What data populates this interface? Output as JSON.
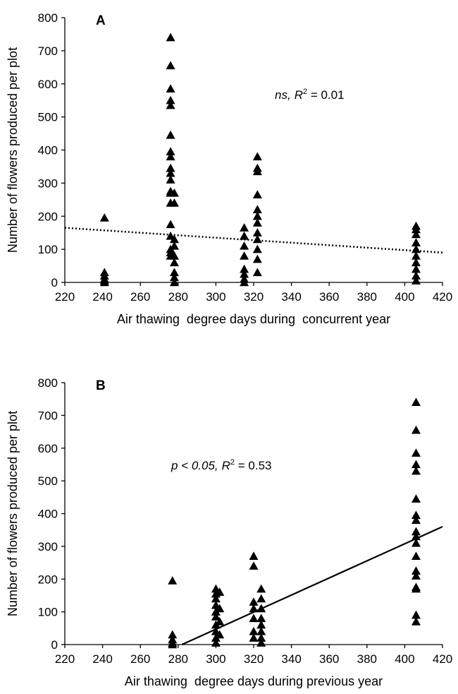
{
  "chart_data": [
    {
      "type": "scatter",
      "panel_label": "A",
      "xlabel": "Air thawing  degree days during  concurrent year",
      "ylabel": "Number of flowers produced per plot",
      "annotation": {
        "italic": "ns,",
        "symbol": "R",
        "superscript": "2",
        "text": " = 0.01"
      },
      "xlim": [
        220,
        420
      ],
      "xticks": [
        220,
        240,
        260,
        280,
        300,
        320,
        340,
        360,
        380,
        400,
        420
      ],
      "ylim": [
        0,
        800
      ],
      "yticks": [
        0,
        100,
        200,
        300,
        400,
        500,
        600,
        700,
        800
      ],
      "color": "#000000",
      "series": [
        {
          "x": [
            241,
            241,
            241,
            241,
            241,
            241,
            276,
            276,
            276,
            276,
            276,
            276,
            276,
            276,
            276,
            276,
            276,
            276,
            276,
            276,
            276,
            276,
            276,
            276,
            276,
            278,
            278,
            278,
            278,
            278,
            278,
            278,
            278,
            278,
            315,
            315,
            315,
            315,
            315,
            315,
            315,
            315,
            322,
            322,
            322,
            322,
            322,
            322,
            322,
            322,
            322,
            322,
            322,
            322,
            406,
            406,
            406,
            406,
            406,
            406,
            406,
            406,
            406,
            406
          ],
          "values": [
            195,
            30,
            20,
            10,
            5,
            0,
            740,
            655,
            585,
            550,
            535,
            445,
            395,
            380,
            345,
            330,
            310,
            275,
            270,
            240,
            175,
            140,
            100,
            80,
            90,
            270,
            240,
            130,
            110,
            80,
            60,
            30,
            15,
            0,
            165,
            140,
            110,
            80,
            40,
            25,
            10,
            0,
            380,
            345,
            335,
            265,
            220,
            200,
            180,
            150,
            130,
            100,
            70,
            30,
            170,
            160,
            145,
            120,
            100,
            80,
            60,
            40,
            20,
            5
          ]
        }
      ],
      "trendline": {
        "x": [
          220,
          420
        ],
        "values": [
          165,
          90
        ],
        "style": "dotted"
      }
    },
    {
      "type": "scatter",
      "panel_label": "B",
      "xlabel": "Air thawing  degree days during previous year",
      "ylabel": "Number of flowers produced per plot",
      "annotation": {
        "italic": "p < 0.05,",
        "symbol": "R",
        "superscript": "2",
        "text": " = 0.53"
      },
      "xlim": [
        220,
        420
      ],
      "xticks": [
        220,
        240,
        260,
        280,
        300,
        320,
        340,
        360,
        380,
        400,
        420
      ],
      "ylim": [
        0,
        800
      ],
      "yticks": [
        0,
        100,
        200,
        300,
        400,
        500,
        600,
        700,
        800
      ],
      "color": "#000000",
      "series": [
        {
          "x": [
            277,
            277,
            277,
            277,
            277,
            300,
            300,
            300,
            300,
            300,
            300,
            300,
            300,
            300,
            300,
            302,
            302,
            302,
            302,
            320,
            320,
            320,
            320,
            320,
            320,
            320,
            324,
            324,
            324,
            324,
            324,
            324,
            324,
            324,
            406,
            406,
            406,
            406,
            406,
            406,
            406,
            406,
            406,
            406,
            406,
            406,
            406,
            406,
            406,
            406,
            406,
            406
          ],
          "values": [
            195,
            30,
            15,
            5,
            0,
            170,
            155,
            140,
            120,
            100,
            85,
            60,
            40,
            20,
            5,
            160,
            110,
            70,
            30,
            270,
            240,
            130,
            110,
            80,
            40,
            20,
            170,
            140,
            110,
            80,
            60,
            40,
            20,
            5,
            740,
            655,
            585,
            550,
            530,
            445,
            395,
            380,
            345,
            330,
            310,
            270,
            225,
            210,
            175,
            170,
            90,
            70
          ]
        }
      ],
      "trendline": {
        "x": [
          282,
          420
        ],
        "values": [
          0,
          360
        ],
        "style": "solid"
      }
    }
  ]
}
